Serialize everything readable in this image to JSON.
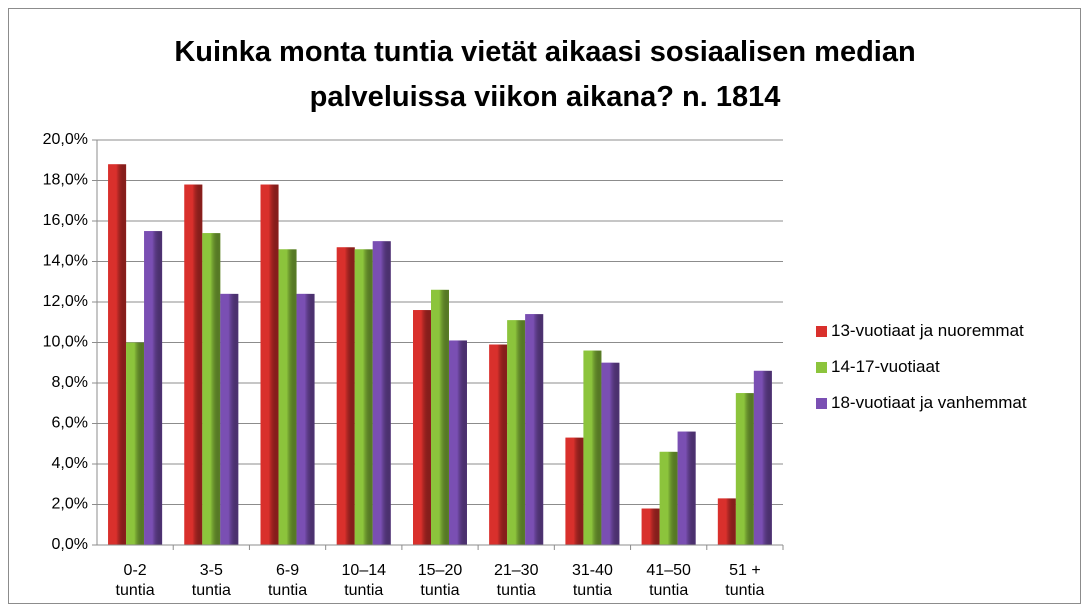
{
  "chart_data": {
    "type": "bar",
    "title": "Kuinka monta tuntia vietät aikaasi sosiaalisen median palveluissa viikon aikana? n. 1814",
    "categories": [
      "0-2 tuntia",
      "3-5 tuntia",
      "6-9 tuntia",
      "10–14 tuntia",
      "15–20 tuntia",
      "21–30 tuntia",
      "31-40 tuntia",
      "41–50 tuntia",
      "51 + tuntia"
    ],
    "series": [
      {
        "name": "13-vuotiaat ja nuoremmat",
        "color": "#d9302c",
        "values": [
          18.8,
          17.8,
          17.8,
          14.7,
          11.6,
          9.9,
          5.3,
          1.8,
          2.3
        ]
      },
      {
        "name": "14-17-vuotiaat",
        "color": "#8cc43c",
        "values": [
          10.0,
          15.4,
          14.6,
          14.6,
          12.6,
          11.1,
          9.6,
          4.6,
          7.5
        ]
      },
      {
        "name": "18-vuotiaat ja vanhemmat",
        "color": "#7a4fb3",
        "values": [
          15.5,
          12.4,
          12.4,
          15.0,
          10.1,
          11.4,
          9.0,
          5.6,
          8.6
        ]
      }
    ],
    "ylim": [
      0,
      20
    ],
    "yticks": [
      {
        "value": 0,
        "label": "0,0%"
      },
      {
        "value": 2,
        "label": "2,0%"
      },
      {
        "value": 4,
        "label": "4,0%"
      },
      {
        "value": 6,
        "label": "6,0%"
      },
      {
        "value": 8,
        "label": "8,0%"
      },
      {
        "value": 10,
        "label": "10,0%"
      },
      {
        "value": 12,
        "label": "12,0%"
      },
      {
        "value": 14,
        "label": "14,0%"
      },
      {
        "value": 16,
        "label": "16,0%"
      },
      {
        "value": 18,
        "label": "18,0%"
      },
      {
        "value": 20,
        "label": "20,0%"
      }
    ],
    "grid": true,
    "legend": "right"
  }
}
